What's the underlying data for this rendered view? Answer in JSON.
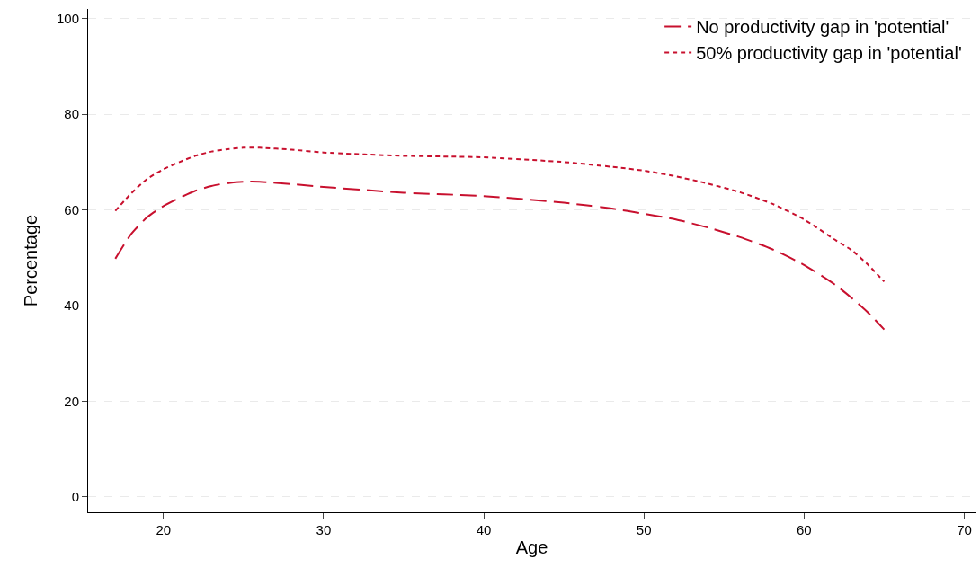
{
  "chart_data": {
    "type": "line",
    "xlabel": "Age",
    "ylabel": "Percentage",
    "x": [
      17,
      18,
      19,
      20,
      21,
      22,
      23,
      24,
      25,
      26,
      28,
      30,
      35,
      40,
      45,
      48,
      50,
      52,
      54,
      56,
      58,
      60,
      62,
      63,
      64,
      65
    ],
    "series": [
      {
        "name": "No productivity gap in 'potential'",
        "color": "#c8102e",
        "line_style": "dashed",
        "values": [
          49.8,
          55,
          58.5,
          60.8,
          62.5,
          64,
          65,
          65.6,
          65.9,
          65.9,
          65.4,
          64.8,
          63.6,
          62.9,
          61.5,
          60.3,
          59.2,
          58,
          56.3,
          54.3,
          51.8,
          48.5,
          44.2,
          41.5,
          38.5,
          35
        ]
      },
      {
        "name": "50% productivity gap in 'potential'",
        "color": "#c8102e",
        "line_style": "dotted",
        "values": [
          59.8,
          63.5,
          66.5,
          68.5,
          70,
          71.3,
          72.2,
          72.7,
          73,
          73,
          72.6,
          72,
          71.3,
          71,
          70,
          69,
          68.2,
          67,
          65.5,
          63.7,
          61.3,
          58,
          53.6,
          51.5,
          48.5,
          45
        ]
      }
    ],
    "xlim": [
      15.3,
      70.7
    ],
    "xticks": [
      20,
      30,
      40,
      50,
      60,
      70
    ],
    "ylim": [
      -3.2,
      102
    ],
    "yticks": [
      0,
      20,
      40,
      60,
      80,
      100
    ],
    "grid": "y",
    "legend": "top right",
    "marker": "none"
  }
}
